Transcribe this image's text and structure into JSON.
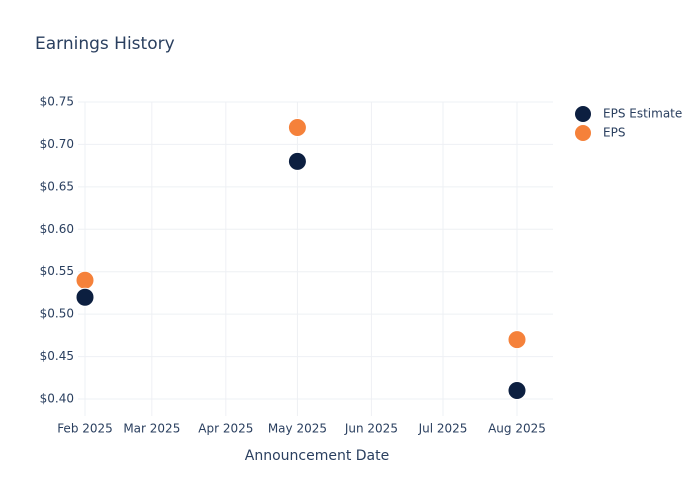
{
  "chart_data": {
    "type": "scatter",
    "title": "Earnings History",
    "x_label": "Announcement Date",
    "x": [
      "2025-02",
      "2025-05",
      "2025-08"
    ],
    "series": [
      {
        "name": "EPS Estimate",
        "color": "#0c1f40",
        "values": [
          0.52,
          0.68,
          0.41
        ]
      },
      {
        "name": "EPS",
        "color": "#f5813a",
        "values": [
          0.54,
          0.72,
          0.47
        ]
      }
    ],
    "xticks": [
      {
        "value": "2025-02",
        "label": "Feb 2025"
      },
      {
        "value": "2025-03",
        "label": "Mar 2025"
      },
      {
        "value": "2025-04",
        "label": "Apr 2025"
      },
      {
        "value": "2025-05",
        "label": "May 2025"
      },
      {
        "value": "2025-06",
        "label": "Jun 2025"
      },
      {
        "value": "2025-07",
        "label": "Jul 2025"
      },
      {
        "value": "2025-08",
        "label": "Aug 2025"
      }
    ],
    "ylim": [
      0.38,
      0.75
    ],
    "yticks": [
      {
        "value": 0.4,
        "label": "$0.40"
      },
      {
        "value": 0.45,
        "label": "$0.45"
      },
      {
        "value": 0.5,
        "label": "$0.50"
      },
      {
        "value": 0.55,
        "label": "$0.55"
      },
      {
        "value": 0.6,
        "label": "$0.60"
      },
      {
        "value": 0.65,
        "label": "$0.65"
      },
      {
        "value": 0.7,
        "label": "$0.70"
      },
      {
        "value": 0.75,
        "label": "$0.75"
      }
    ],
    "grid": true,
    "legend": "top-right"
  }
}
